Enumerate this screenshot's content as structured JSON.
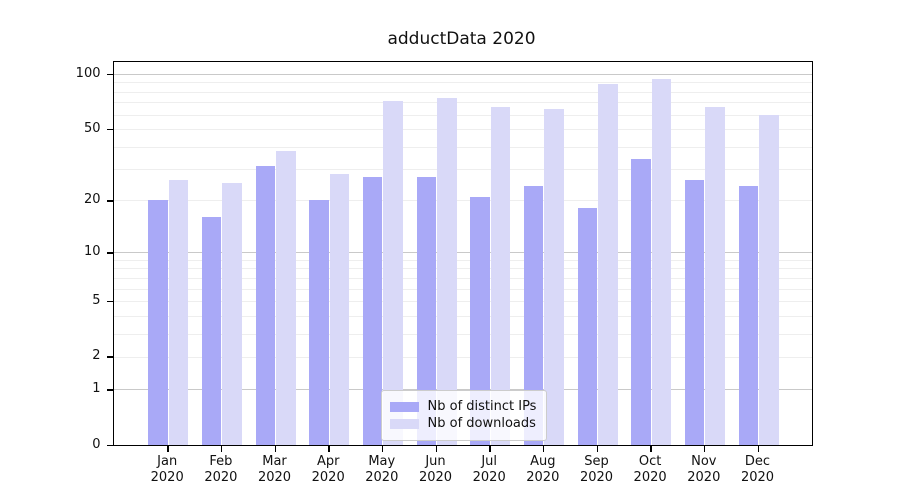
{
  "title": "adductData 2020",
  "colors": {
    "distinct_ips": "#a9a9f7",
    "downloads": "#d9d9f8",
    "grid_major": "#c9c9c9",
    "grid_minor": "#eeeeee",
    "axis": "#000000",
    "background": "#ffffff"
  },
  "chart_data": {
    "type": "bar",
    "title": "adductData 2020",
    "categories": [
      "Jan\n2020",
      "Feb\n2020",
      "Mar\n2020",
      "Apr\n2020",
      "May\n2020",
      "Jun\n2020",
      "Jul\n2020",
      "Aug\n2020",
      "Sep\n2020",
      "Oct\n2020",
      "Nov\n2020",
      "Dec\n2020"
    ],
    "series": [
      {
        "name": "Nb of distinct IPs",
        "color": "#a9a9f7",
        "values": [
          20,
          16,
          31,
          20,
          27,
          27,
          21,
          24,
          18,
          34,
          26,
          24
        ]
      },
      {
        "name": "Nb of downloads",
        "color": "#d9d9f8",
        "values": [
          26,
          25,
          38,
          28,
          71,
          74,
          66,
          64,
          88,
          94,
          66,
          60
        ]
      }
    ],
    "xlabel": "",
    "ylabel": "",
    "yscale": "log1p",
    "ylim": [
      0,
      116
    ],
    "y_ticks": [
      0,
      1,
      2,
      5,
      10,
      20,
      50,
      100
    ],
    "grid_major": [
      1,
      10,
      100
    ],
    "grid_minor": [
      2,
      3,
      4,
      5,
      6,
      7,
      8,
      9,
      20,
      30,
      40,
      50,
      60,
      70,
      80,
      90
    ],
    "grid": "on",
    "legend_position": "lower center"
  }
}
